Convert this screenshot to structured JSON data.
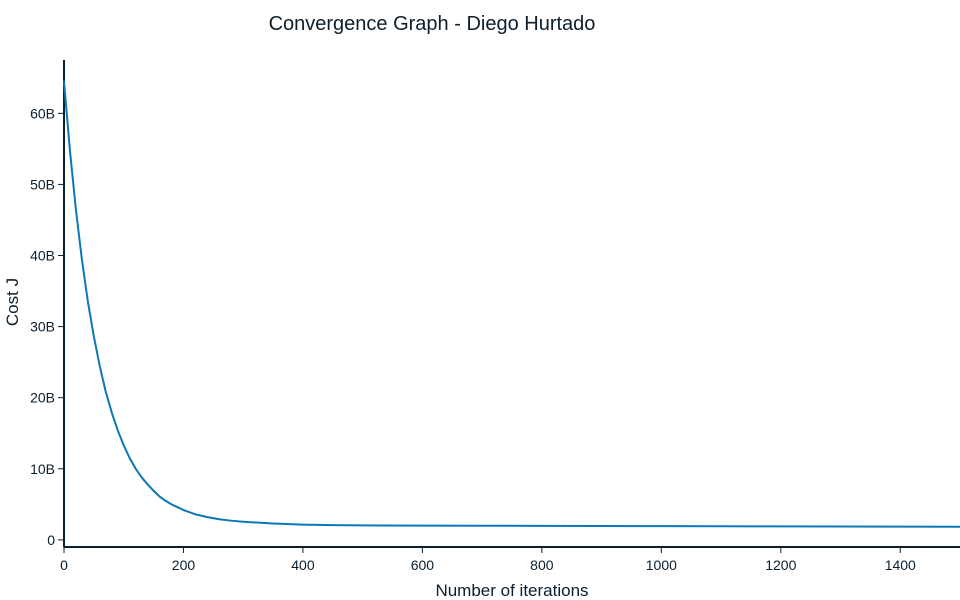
{
  "chart_data": {
    "type": "line",
    "title": "Convergence Graph - Diego Hurtado",
    "xlabel": "Number of iterations",
    "ylabel": "Cost J",
    "xlim": [
      0,
      1500
    ],
    "ylim": [
      -1000000000,
      67500000000
    ],
    "x_ticks": [
      0,
      200,
      400,
      600,
      800,
      1000,
      1200,
      1400
    ],
    "x_tick_labels": [
      "0",
      "200",
      "400",
      "600",
      "800",
      "1000",
      "1200",
      "1400"
    ],
    "y_ticks": [
      0,
      10000000000,
      20000000000,
      30000000000,
      40000000000,
      50000000000,
      60000000000
    ],
    "y_tick_labels": [
      "0",
      "10B",
      "20B",
      "30B",
      "40B",
      "50B",
      "60B"
    ],
    "grid": false,
    "legend": "none",
    "series": [
      {
        "color": "#0a78b8",
        "x": [
          0,
          10,
          20,
          30,
          40,
          50,
          60,
          70,
          80,
          90,
          100,
          110,
          120,
          130,
          140,
          150,
          160,
          170,
          180,
          190,
          200,
          220,
          240,
          260,
          280,
          300,
          350,
          400,
          450,
          500,
          600,
          700,
          800,
          900,
          1000,
          1100,
          1200,
          1300,
          1400,
          1500
        ],
        "values": [
          64500000000,
          54700000000,
          46400000000,
          39400000000,
          33500000000,
          28600000000,
          24400000000,
          20800000000,
          17900000000,
          15400000000,
          13300000000,
          11500000000,
          10000000000,
          8800000000,
          7800000000,
          6900000000,
          6100000000,
          5500000000,
          5000000000,
          4600000000,
          4200000000,
          3600000000,
          3200000000,
          2900000000,
          2700000000,
          2550000000,
          2300000000,
          2150000000,
          2080000000,
          2040000000,
          2010000000,
          1990000000,
          1970000000,
          1950000000,
          1930000000,
          1910000000,
          1900000000,
          1880000000,
          1860000000,
          1840000000
        ]
      }
    ]
  }
}
